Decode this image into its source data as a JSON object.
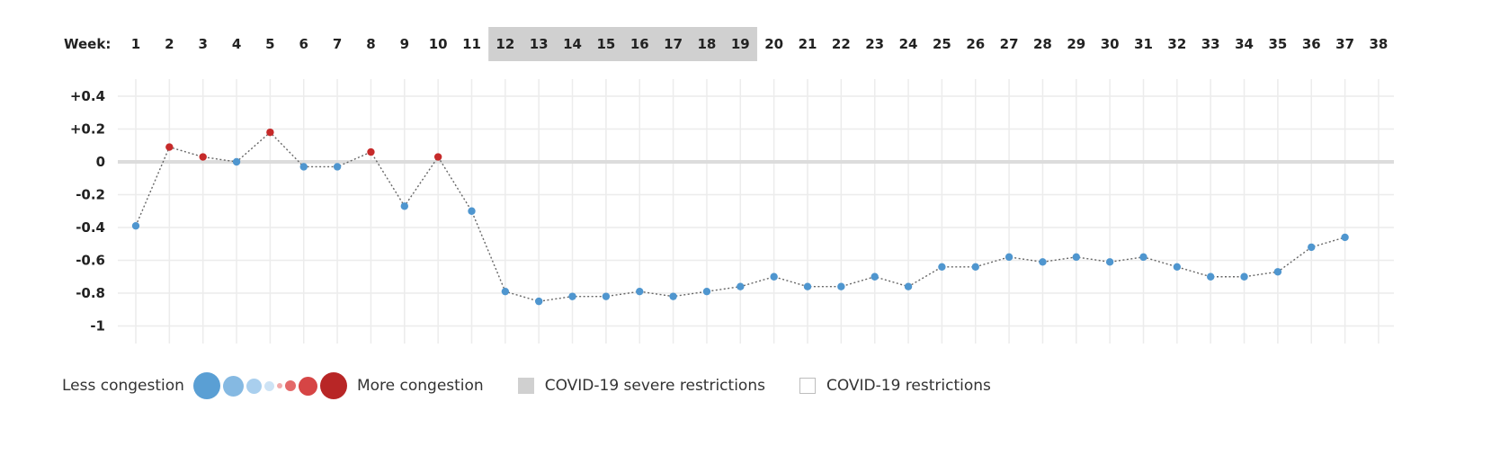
{
  "chart_data": {
    "type": "line",
    "x_axis_label": "Week:",
    "x": [
      1,
      2,
      3,
      4,
      5,
      6,
      7,
      8,
      9,
      10,
      11,
      12,
      13,
      14,
      15,
      16,
      17,
      18,
      19,
      20,
      21,
      22,
      23,
      24,
      25,
      26,
      27,
      28,
      29,
      30,
      31,
      32,
      33,
      34,
      35,
      36,
      37,
      38
    ],
    "y": [
      -0.39,
      0.09,
      0.03,
      0.0,
      0.18,
      -0.03,
      -0.03,
      0.06,
      -0.27,
      0.03,
      -0.3,
      -0.79,
      -0.85,
      -0.82,
      -0.82,
      -0.79,
      -0.82,
      -0.79,
      -0.76,
      -0.7,
      -0.76,
      -0.76,
      -0.7,
      -0.76,
      -0.64,
      -0.64,
      -0.58,
      -0.61,
      -0.58,
      -0.61,
      -0.58,
      -0.64,
      -0.7,
      -0.7,
      -0.67,
      -0.52,
      -0.46,
      null
    ],
    "y_ticks": [
      "+0.4",
      "+0.2",
      "0",
      "-0.2",
      "-0.4",
      "-0.6",
      "-0.8",
      "-1"
    ],
    "y_tick_values": [
      0.4,
      0.2,
      0,
      -0.2,
      -0.4,
      -0.6,
      -0.8,
      -1
    ],
    "ylim": [
      -1.05,
      0.45
    ],
    "shaded_weeks": [
      12,
      19
    ],
    "grid": true,
    "colors": {
      "positive": "#c62a2a",
      "negative": "#4f96cf",
      "shade": "#d0d0d0",
      "grid": "#ececec",
      "zero_line": "#dcdcdc",
      "connector": "#666666"
    }
  },
  "legend": {
    "less_label": "Less congestion",
    "more_label": "More congestion",
    "severe_label": "COVID-19 severe restrictions",
    "restrictions_label": "COVID-19 restrictions",
    "size_dots": [
      {
        "color": "#5a9fd4"
      },
      {
        "color": "#85b9e2"
      },
      {
        "color": "#a9cfee"
      },
      {
        "color": "#cde3f5"
      },
      {
        "color": "#f1aaaa"
      },
      {
        "color": "#e46a6a"
      },
      {
        "color": "#d64545"
      },
      {
        "color": "#b82626"
      }
    ]
  }
}
